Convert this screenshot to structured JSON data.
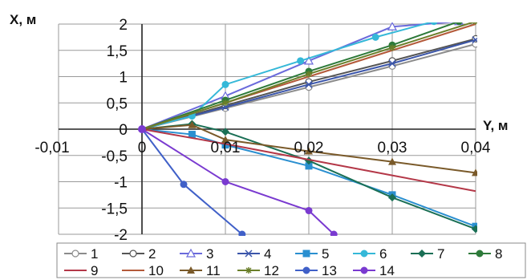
{
  "chart_data": {
    "type": "line",
    "xlabel": "Y, м",
    "ylabel": "X, м",
    "xlim": [
      -0.01,
      0.04
    ],
    "ylim": [
      -2,
      2
    ],
    "x_ticks": [
      "-0,01",
      "0",
      "0,01",
      "0,02",
      "0,03",
      "0,04"
    ],
    "y_ticks": [
      "2",
      "1,5",
      "1",
      "0,5",
      "0",
      "-0,5",
      "-1",
      "-1,5",
      "-2"
    ],
    "grid": true,
    "legend_position": "bottom",
    "series": [
      {
        "name": "1",
        "color": "#8c8c8c",
        "marker": "circle-open",
        "x": [
          0,
          0.01,
          0.02,
          0.03,
          0.04
        ],
        "y": [
          0,
          0.4,
          0.8,
          1.2,
          1.62
        ]
      },
      {
        "name": "2",
        "color": "#555555",
        "marker": "circle-open",
        "x": [
          0,
          0.01,
          0.02,
          0.03,
          0.04
        ],
        "y": [
          0,
          0.45,
          0.9,
          1.3,
          1.72
        ]
      },
      {
        "name": "3",
        "color": "#6a6adb",
        "marker": "triangle-open",
        "x": [
          0,
          0.01,
          0.02,
          0.03,
          0.038
        ],
        "y": [
          0,
          0.63,
          1.3,
          1.95,
          2.05
        ]
      },
      {
        "name": "4",
        "color": "#3a55aa",
        "marker": "x",
        "x": [
          0,
          0.01,
          0.02,
          0.03,
          0.04
        ],
        "y": [
          0,
          0.42,
          0.85,
          1.25,
          1.7
        ]
      },
      {
        "name": "5",
        "color": "#2a8fd0",
        "marker": "square",
        "x": [
          0,
          0.006,
          0.01,
          0.02,
          0.03,
          0.04
        ],
        "y": [
          0,
          -0.1,
          -0.3,
          -0.7,
          -1.25,
          -1.85
        ]
      },
      {
        "name": "6",
        "color": "#35b8d8",
        "marker": "circle",
        "x": [
          0,
          0.006,
          0.01,
          0.019,
          0.028,
          0.035
        ],
        "y": [
          0,
          0.25,
          0.85,
          1.3,
          1.75,
          2.05
        ]
      },
      {
        "name": "7",
        "color": "#1a6f55",
        "marker": "diamond",
        "x": [
          0,
          0.006,
          0.01,
          0.02,
          0.03,
          0.04
        ],
        "y": [
          0,
          0.1,
          -0.05,
          -0.6,
          -1.3,
          -1.9
        ]
      },
      {
        "name": "8",
        "color": "#2d7a3a",
        "marker": "circle",
        "x": [
          0,
          0.01,
          0.02,
          0.03,
          0.038
        ],
        "y": [
          0,
          0.55,
          1.1,
          1.6,
          2.05
        ]
      },
      {
        "name": "9",
        "color": "#b43848",
        "marker": "none",
        "x": [
          0,
          0.01,
          0.02,
          0.03,
          0.04
        ],
        "y": [
          0,
          -0.28,
          -0.58,
          -0.88,
          -1.18
        ]
      },
      {
        "name": "10",
        "color": "#b45a3a",
        "marker": "none",
        "x": [
          0,
          0.01,
          0.02,
          0.03,
          0.04
        ],
        "y": [
          0,
          0.5,
          1.0,
          1.5,
          2.0
        ]
      },
      {
        "name": "11",
        "color": "#7a5a2a",
        "marker": "triangle",
        "x": [
          0,
          0.006,
          0.01,
          0.02,
          0.03,
          0.04
        ],
        "y": [
          0,
          0.08,
          -0.2,
          -0.42,
          -0.62,
          -0.83
        ]
      },
      {
        "name": "12",
        "color": "#6a7f2a",
        "marker": "star",
        "x": [
          0,
          0.01,
          0.02,
          0.03,
          0.04
        ],
        "y": [
          0,
          0.5,
          1.05,
          1.55,
          2.05
        ]
      },
      {
        "name": "13",
        "color": "#4060c8",
        "marker": "circle",
        "x": [
          0,
          0.005,
          0.012
        ],
        "y": [
          0,
          -1.05,
          -2.0
        ]
      },
      {
        "name": "14",
        "color": "#7a3ad0",
        "marker": "circle",
        "x": [
          0,
          0.01,
          0.02,
          0.023
        ],
        "y": [
          0,
          -1.0,
          -1.55,
          -2.0
        ]
      }
    ]
  }
}
